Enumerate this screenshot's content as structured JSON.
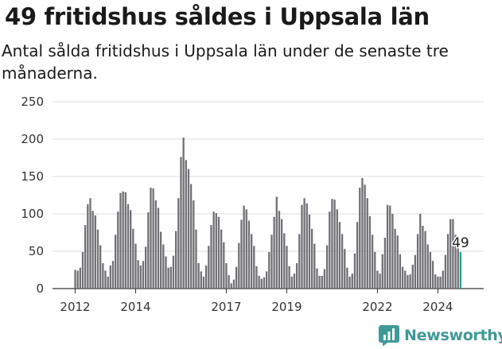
{
  "title": "49 fritidshus såldes i Uppsala län",
  "subtitle": "Antal sålda fritidshus i Uppsala län under de senaste tre månaderna.",
  "brand": {
    "name": "Newsworthy",
    "color": "#3e9a97"
  },
  "colors": {
    "bar": "#707075",
    "highlight": "#2a9d99",
    "grid": "#dddddd"
  },
  "chart_data": {
    "type": "bar",
    "ylim": [
      0,
      250
    ],
    "yticks": [
      0,
      50,
      100,
      150,
      200,
      250
    ],
    "xticks": [
      {
        "label": "2012",
        "index": 0
      },
      {
        "label": "2014",
        "index": 24
      },
      {
        "label": "2017",
        "index": 60
      },
      {
        "label": "2019",
        "index": 84
      },
      {
        "label": "2022",
        "index": 120
      },
      {
        "label": "2024",
        "index": 144
      }
    ],
    "highlight_label": "49",
    "x_start": "2011-10",
    "values": [
      25,
      24,
      28,
      49,
      85,
      113,
      121,
      104,
      98,
      79,
      58,
      34,
      24,
      16,
      31,
      37,
      72,
      103,
      128,
      130,
      129,
      113,
      105,
      80,
      60,
      38,
      31,
      37,
      56,
      102,
      135,
      134,
      118,
      108,
      76,
      59,
      43,
      28,
      29,
      44,
      77,
      121,
      176,
      202,
      172,
      160,
      140,
      118,
      79,
      34,
      23,
      16,
      31,
      57,
      85,
      103,
      101,
      96,
      79,
      62,
      34,
      18,
      7,
      12,
      29,
      61,
      92,
      111,
      106,
      91,
      73,
      57,
      30,
      17,
      13,
      15,
      23,
      49,
      72,
      96,
      123,
      104,
      93,
      74,
      57,
      30,
      16,
      20,
      34,
      73,
      112,
      121,
      114,
      99,
      80,
      60,
      27,
      17,
      17,
      26,
      58,
      103,
      120,
      119,
      106,
      89,
      73,
      53,
      28,
      16,
      20,
      47,
      89,
      135,
      148,
      139,
      121,
      97,
      72,
      49,
      24,
      20,
      46,
      68,
      112,
      111,
      100,
      80,
      71,
      46,
      29,
      24,
      18,
      19,
      32,
      45,
      73,
      100,
      84,
      77,
      59,
      49,
      37,
      19,
      16,
      16,
      24,
      45,
      73,
      93,
      93,
      72,
      60,
      49
    ]
  }
}
